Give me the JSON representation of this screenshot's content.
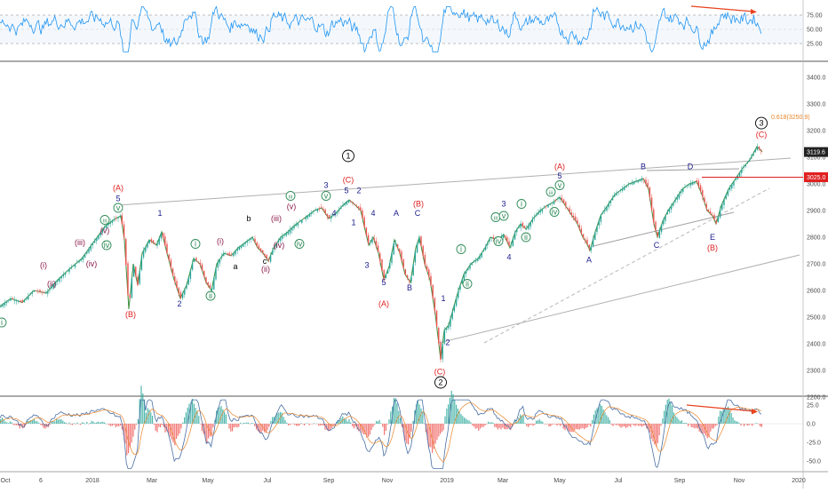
{
  "chart_data": {
    "type": "line",
    "title": "",
    "x_axis": {
      "tick_labels": [
        "Oct",
        "6",
        "2018",
        "Mar",
        "May",
        "Jul",
        "Sep",
        "Nov",
        "2019",
        "Mar",
        "May",
        "Jul",
        "Sep",
        "Nov",
        "2020"
      ]
    },
    "rsi_panel": {
      "y_ticks": [
        75,
        50,
        25
      ],
      "tick_labels": [
        "75.00",
        "50.00",
        "25.00"
      ],
      "ylim": [
        10,
        90
      ]
    },
    "price_panel": {
      "y_ticks": [
        3400,
        3300,
        3200,
        3100,
        3000,
        2900,
        2800,
        2700,
        2600,
        2500,
        2400,
        2300,
        2200
      ],
      "tick_labels": [
        "3400.0",
        "3300.0",
        "3200.0",
        "3100.0",
        "3000.0",
        "2900.0",
        "2800.0",
        "2700.0",
        "2600.0",
        "2500.0",
        "2400.0",
        "2300.0",
        "2200.0"
      ],
      "ylim": [
        2130,
        3480
      ],
      "last_price": 3119.6,
      "last_price_label": "3119.6",
      "level_price": 3025.0,
      "level_label": "3025.0",
      "fib_value": 3250.9,
      "fib_label": "0.618(3250.9)",
      "path": [
        [
          0,
          2540
        ],
        [
          12,
          2570
        ],
        [
          25,
          2555
        ],
        [
          38,
          2600
        ],
        [
          52,
          2590
        ],
        [
          65,
          2640
        ],
        [
          78,
          2680
        ],
        [
          92,
          2720
        ],
        [
          105,
          2780
        ],
        [
          118,
          2840
        ],
        [
          130,
          2870
        ],
        [
          136,
          2880
        ],
        [
          140,
          2790
        ],
        [
          145,
          2530
        ],
        [
          150,
          2700
        ],
        [
          155,
          2620
        ],
        [
          160,
          2740
        ],
        [
          168,
          2790
        ],
        [
          176,
          2770
        ],
        [
          182,
          2820
        ],
        [
          188,
          2740
        ],
        [
          196,
          2640
        ],
        [
          203,
          2570
        ],
        [
          210,
          2620
        ],
        [
          218,
          2720
        ],
        [
          225,
          2700
        ],
        [
          232,
          2630
        ],
        [
          238,
          2600
        ],
        [
          244,
          2700
        ],
        [
          252,
          2740
        ],
        [
          260,
          2730
        ],
        [
          268,
          2760
        ],
        [
          276,
          2780
        ],
        [
          284,
          2800
        ],
        [
          290,
          2760
        ],
        [
          296,
          2740
        ],
        [
          302,
          2710
        ],
        [
          308,
          2760
        ],
        [
          316,
          2800
        ],
        [
          324,
          2820
        ],
        [
          330,
          2840
        ],
        [
          338,
          2860
        ],
        [
          346,
          2880
        ],
        [
          354,
          2900
        ],
        [
          362,
          2910
        ],
        [
          370,
          2870
        ],
        [
          378,
          2890
        ],
        [
          386,
          2920
        ],
        [
          393,
          2940
        ],
        [
          400,
          2920
        ],
        [
          406,
          2900
        ],
        [
          410,
          2840
        ],
        [
          415,
          2770
        ],
        [
          420,
          2800
        ],
        [
          426,
          2740
        ],
        [
          432,
          2640
        ],
        [
          438,
          2690
        ],
        [
          444,
          2790
        ],
        [
          450,
          2740
        ],
        [
          456,
          2660
        ],
        [
          462,
          2630
        ],
        [
          468,
          2760
        ],
        [
          472,
          2800
        ],
        [
          478,
          2700
        ],
        [
          484,
          2640
        ],
        [
          490,
          2510
        ],
        [
          496,
          2340
        ],
        [
          500,
          2450
        ],
        [
          505,
          2470
        ],
        [
          510,
          2530
        ],
        [
          516,
          2600
        ],
        [
          522,
          2660
        ],
        [
          530,
          2700
        ],
        [
          538,
          2720
        ],
        [
          546,
          2760
        ],
        [
          552,
          2800
        ],
        [
          560,
          2790
        ],
        [
          567,
          2810
        ],
        [
          574,
          2760
        ],
        [
          580,
          2820
        ],
        [
          586,
          2850
        ],
        [
          592,
          2830
        ],
        [
          600,
          2870
        ],
        [
          608,
          2900
        ],
        [
          616,
          2920
        ],
        [
          622,
          2930
        ],
        [
          630,
          2950
        ],
        [
          636,
          2920
        ],
        [
          644,
          2880
        ],
        [
          650,
          2850
        ],
        [
          656,
          2800
        ],
        [
          660,
          2780
        ],
        [
          664,
          2750
        ],
        [
          670,
          2820
        ],
        [
          676,
          2880
        ],
        [
          684,
          2920
        ],
        [
          692,
          2960
        ],
        [
          700,
          2980
        ],
        [
          708,
          3000
        ],
        [
          716,
          3010
        ],
        [
          724,
          3020
        ],
        [
          730,
          2980
        ],
        [
          736,
          2850
        ],
        [
          740,
          2800
        ],
        [
          746,
          2860
        ],
        [
          752,
          2900
        ],
        [
          760,
          2940
        ],
        [
          768,
          2980
        ],
        [
          776,
          3000
        ],
        [
          784,
          3010
        ],
        [
          790,
          2960
        ],
        [
          796,
          2900
        ],
        [
          802,
          2880
        ],
        [
          806,
          2850
        ],
        [
          812,
          2920
        ],
        [
          820,
          2980
        ],
        [
          828,
          3020
        ],
        [
          836,
          3060
        ],
        [
          844,
          3090
        ],
        [
          852,
          3140
        ],
        [
          858,
          3120
        ]
      ]
    },
    "macd_panel": {
      "y_ticks": [
        25,
        0,
        -25,
        -50
      ],
      "tick_labels": [
        "25.0",
        "0.0",
        "-25.0",
        "-50.0"
      ],
      "ylim": [
        -60,
        32
      ]
    },
    "wave_labels": [
      {
        "text": "(A)",
        "x": 133,
        "y": 2975,
        "color": "#e02020"
      },
      {
        "text": "5",
        "x": 133,
        "y": 2935,
        "color": "#1a1a8c"
      },
      {
        "text": "v",
        "x": 133,
        "y": 2900,
        "color": "#2e8b57",
        "circled": true
      },
      {
        "text": "iii",
        "x": 118,
        "y": 2855,
        "color": "#2e8b57",
        "circled": true
      },
      {
        "text": "(v)",
        "x": 118,
        "y": 2815,
        "color": "#8b1a4a"
      },
      {
        "text": "iv",
        "x": 120,
        "y": 2760,
        "color": "#2e8b57",
        "circled": true
      },
      {
        "text": "(iii)",
        "x": 90,
        "y": 2770,
        "color": "#8b1a4a"
      },
      {
        "text": "(iv)",
        "x": 103,
        "y": 2690,
        "color": "#8b1a4a"
      },
      {
        "text": "(i)",
        "x": 49,
        "y": 2685,
        "color": "#8b1a4a"
      },
      {
        "text": "(ii)",
        "x": 58,
        "y": 2615,
        "color": "#8b1a4a"
      },
      {
        "text": "i",
        "x": 2,
        "y": 2470,
        "color": "#2e8b57",
        "circled": true
      },
      {
        "text": "(B)",
        "x": 147,
        "y": 2500,
        "color": "#e02020"
      },
      {
        "text": "1",
        "x": 180,
        "y": 2880,
        "color": "#1a1a8c"
      },
      {
        "text": "2",
        "x": 202,
        "y": 2540,
        "color": "#1a1a8c"
      },
      {
        "text": "i",
        "x": 220,
        "y": 2765,
        "color": "#2e8b57",
        "circled": true
      },
      {
        "text": "ii",
        "x": 237,
        "y": 2570,
        "color": "#2e8b57",
        "circled": true
      },
      {
        "text": "(i)",
        "x": 248,
        "y": 2775,
        "color": "#8b1a4a"
      },
      {
        "text": "a",
        "x": 265,
        "y": 2680,
        "color": "#000000"
      },
      {
        "text": "b",
        "x": 280,
        "y": 2860,
        "color": "#000000"
      },
      {
        "text": "c",
        "x": 298,
        "y": 2700,
        "color": "#000000"
      },
      {
        "text": "(ii)",
        "x": 299,
        "y": 2670,
        "color": "#8b1a4a"
      },
      {
        "text": "(iii)",
        "x": 311,
        "y": 2860,
        "color": "#8b1a4a"
      },
      {
        "text": "(iv)",
        "x": 314,
        "y": 2760,
        "color": "#8b1a4a"
      },
      {
        "text": "(v)",
        "x": 328,
        "y": 2905,
        "color": "#8b1a4a"
      },
      {
        "text": "iii",
        "x": 327,
        "y": 2945,
        "color": "#2e8b57",
        "circled": true
      },
      {
        "text": "iv",
        "x": 337,
        "y": 2765,
        "color": "#2e8b57",
        "circled": true
      },
      {
        "text": "3",
        "x": 367,
        "y": 2985,
        "color": "#1a1a8c"
      },
      {
        "text": "v",
        "x": 367,
        "y": 2945,
        "color": "#2e8b57",
        "circled": true
      },
      {
        "text": "4",
        "x": 376,
        "y": 2880,
        "color": "#1a1a8c"
      },
      {
        "text": "1",
        "x": 392,
        "y": 3095,
        "color": "#000000",
        "circled": true
      },
      {
        "text": "(C)",
        "x": 392,
        "y": 3005,
        "color": "#e02020"
      },
      {
        "text": "5",
        "x": 390,
        "y": 2965,
        "color": "#1a1a8c"
      },
      {
        "text": "2",
        "x": 404,
        "y": 2965,
        "color": "#1a1a8c"
      },
      {
        "text": "1",
        "x": 398,
        "y": 2845,
        "color": "#1a1a8c"
      },
      {
        "text": "4",
        "x": 420,
        "y": 2880,
        "color": "#1a1a8c"
      },
      {
        "text": "3",
        "x": 413,
        "y": 2685,
        "color": "#1a1a8c"
      },
      {
        "text": "5",
        "x": 432,
        "y": 2620,
        "color": "#1a1a8c"
      },
      {
        "text": "(A)",
        "x": 432,
        "y": 2540,
        "color": "#e02020"
      },
      {
        "text": "A",
        "x": 446,
        "y": 2880,
        "color": "#1a1a8c"
      },
      {
        "text": "B",
        "x": 461,
        "y": 2600,
        "color": "#1a1a8c"
      },
      {
        "text": "(B)",
        "x": 471,
        "y": 2915,
        "color": "#e02020"
      },
      {
        "text": "C",
        "x": 470,
        "y": 2880,
        "color": "#1a1a8c"
      },
      {
        "text": "1",
        "x": 499,
        "y": 2560,
        "color": "#1a1a8c"
      },
      {
        "text": "2",
        "x": 504,
        "y": 2395,
        "color": "#1a1a8c"
      },
      {
        "text": "(C)",
        "x": 495,
        "y": 2285,
        "color": "#e02020"
      },
      {
        "text": "2",
        "x": 496,
        "y": 2245,
        "color": "#000000",
        "circled": true
      },
      {
        "text": "i",
        "x": 519,
        "y": 2745,
        "color": "#2e8b57",
        "circled": true
      },
      {
        "text": "ii",
        "x": 526,
        "y": 2615,
        "color": "#2e8b57",
        "circled": true
      },
      {
        "text": "iii",
        "x": 558,
        "y": 2865,
        "color": "#2e8b57",
        "circled": true
      },
      {
        "text": "3",
        "x": 567,
        "y": 2915,
        "color": "#1a1a8c"
      },
      {
        "text": "v",
        "x": 567,
        "y": 2870,
        "color": "#2e8b57",
        "circled": true
      },
      {
        "text": "iv",
        "x": 561,
        "y": 2775,
        "color": "#2e8b57",
        "circled": true
      },
      {
        "text": "4",
        "x": 573,
        "y": 2715,
        "color": "#1a1a8c"
      },
      {
        "text": "i",
        "x": 587,
        "y": 2915,
        "color": "#2e8b57",
        "circled": true
      },
      {
        "text": "ii",
        "x": 592,
        "y": 2790,
        "color": "#2e8b57",
        "circled": true
      },
      {
        "text": "(A)",
        "x": 630,
        "y": 3055,
        "color": "#e02020"
      },
      {
        "text": "5",
        "x": 630,
        "y": 3020,
        "color": "#1a1a8c"
      },
      {
        "text": "v",
        "x": 630,
        "y": 2985,
        "color": "#2e8b57",
        "circled": true
      },
      {
        "text": "iii",
        "x": 620,
        "y": 2960,
        "color": "#2e8b57",
        "circled": true
      },
      {
        "text": "iv",
        "x": 624,
        "y": 2885,
        "color": "#2e8b57",
        "circled": true
      },
      {
        "text": "A",
        "x": 663,
        "y": 2705,
        "color": "#1a1a8c"
      },
      {
        "text": "B",
        "x": 724,
        "y": 3055,
        "color": "#1a1a8c"
      },
      {
        "text": "C",
        "x": 739,
        "y": 2760,
        "color": "#1a1a8c"
      },
      {
        "text": "D",
        "x": 777,
        "y": 3055,
        "color": "#1a1a8c"
      },
      {
        "text": "E",
        "x": 802,
        "y": 2790,
        "color": "#1a1a8c"
      },
      {
        "text": "(B)",
        "x": 802,
        "y": 2750,
        "color": "#e02020"
      },
      {
        "text": "3",
        "x": 857,
        "y": 3218,
        "color": "#000000",
        "circled": true
      },
      {
        "text": "(C)",
        "x": 857,
        "y": 3175,
        "color": "#e02020"
      }
    ]
  }
}
